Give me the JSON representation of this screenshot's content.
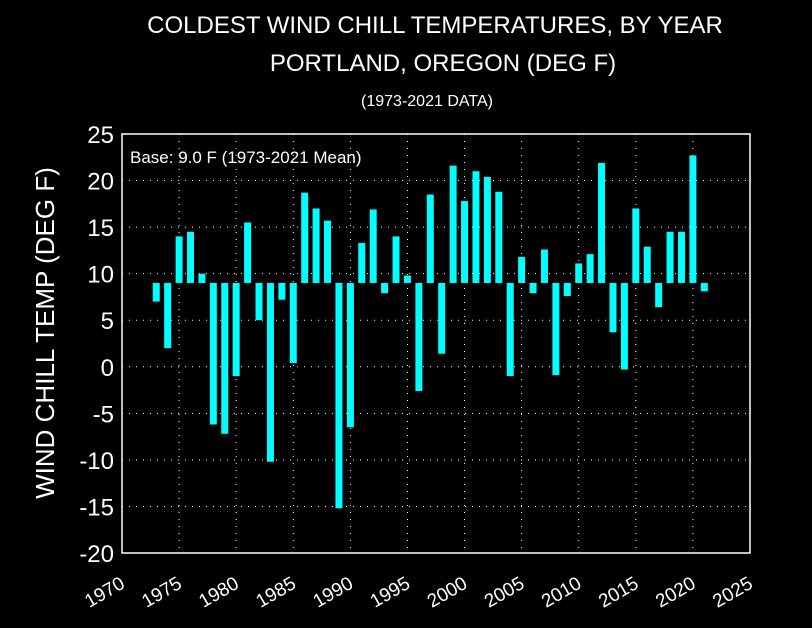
{
  "chart_data": {
    "type": "bar",
    "title": "COLDEST WIND CHILL TEMPERATURES, BY YEAR",
    "subtitle": "PORTLAND, OREGON (DEG F)",
    "subtitle2": "(1973-2021 DATA)",
    "annotation": "Base: 9.0 F (1973-2021 Mean)",
    "ylabel": "WIND CHILL TEMP (DEG F)",
    "xlabel": "",
    "base": 9.0,
    "xlim": [
      1970,
      2025
    ],
    "ylim": [
      -20,
      25
    ],
    "xticks": [
      1970,
      1975,
      1980,
      1985,
      1990,
      1995,
      2000,
      2005,
      2010,
      2015,
      2020,
      2025
    ],
    "yticks": [
      -20,
      -15,
      -10,
      -5,
      0,
      5,
      10,
      15,
      20,
      25
    ],
    "grid": true,
    "bar_color": "#00ffff",
    "background": "#000000",
    "foreground": "#ffffff",
    "x": [
      1973,
      1974,
      1975,
      1976,
      1977,
      1978,
      1979,
      1980,
      1981,
      1982,
      1983,
      1984,
      1985,
      1986,
      1987,
      1988,
      1989,
      1990,
      1991,
      1992,
      1993,
      1994,
      1995,
      1996,
      1997,
      1998,
      1999,
      2000,
      2001,
      2002,
      2003,
      2004,
      2005,
      2006,
      2007,
      2008,
      2009,
      2010,
      2011,
      2012,
      2013,
      2014,
      2015,
      2016,
      2017,
      2018,
      2019,
      2020,
      2021
    ],
    "values": [
      7,
      2,
      14,
      14.5,
      10,
      -6.2,
      -7.2,
      -1,
      15.5,
      5,
      -10.2,
      7.2,
      0.4,
      18.7,
      17,
      15.7,
      -15.2,
      -6.5,
      13.3,
      16.9,
      7.9,
      14,
      9.8,
      -2.6,
      18.5,
      1.4,
      21.6,
      17.8,
      21,
      20.4,
      18.8,
      -1,
      11.8,
      7.9,
      12.6,
      -0.9,
      7.6,
      11.1,
      12.1,
      21.9,
      3.7,
      -0.3,
      17,
      12.9,
      6.4,
      14.5,
      14.5,
      22.7,
      8.1
    ]
  }
}
